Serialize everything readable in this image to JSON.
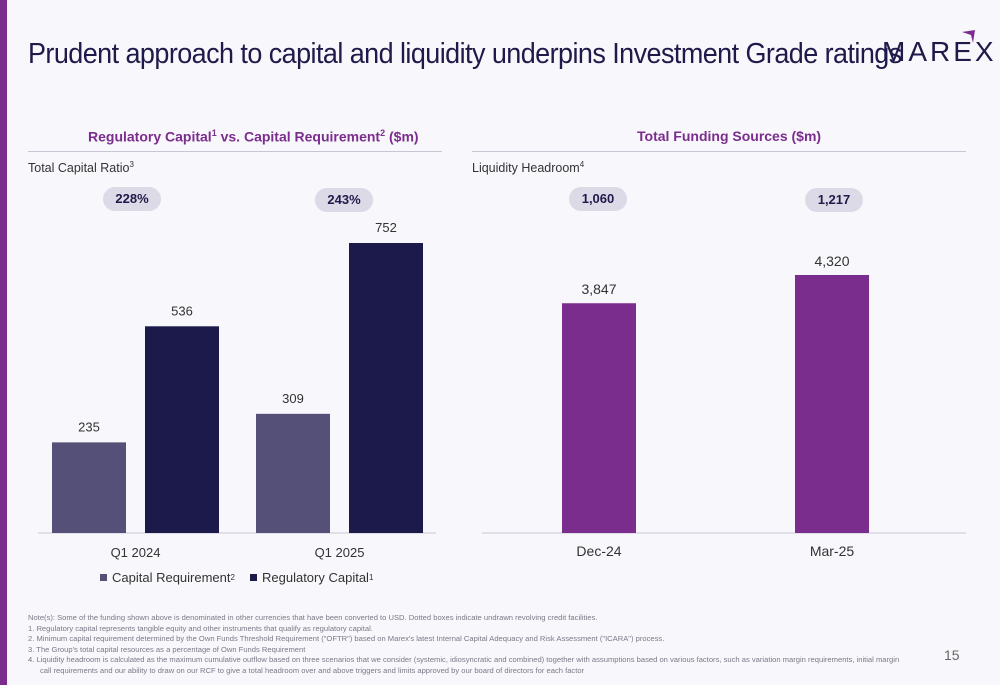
{
  "title": "Prudent approach to capital and liquidity underpins Investment Grade ratings",
  "logo": "MAREX",
  "page_number": "15",
  "colors": {
    "accent": "#7b2d8e",
    "capital_requirement": "#545077",
    "regulatory_capital": "#1c1a4a",
    "funding": "#7b2d8e",
    "pill": "#dcdae6"
  },
  "left_panel": {
    "title": "Regulatory Capital",
    "title_sup1": "1",
    "title_mid": " vs. Capital Requirement",
    "title_sup2": "2",
    "title_end": " ($m)",
    "sublabel": "Total Capital Ratio",
    "sublabel_sup": "3",
    "ratios": [
      "228%",
      "243%"
    ],
    "legend": [
      {
        "label": "Capital Requirement",
        "sup": "2"
      },
      {
        "label": "Regulatory Capital",
        "sup": "1"
      }
    ]
  },
  "right_panel": {
    "title": "Total Funding Sources ($m)",
    "sublabel": "Liquidity Headroom",
    "sublabel_sup": "4",
    "headroom": [
      "1,060",
      "1,217"
    ]
  },
  "chart_data": [
    {
      "type": "bar",
      "title": "Regulatory Capital vs. Capital Requirement ($m)",
      "categories": [
        "Q1 2024",
        "Q1 2025"
      ],
      "series": [
        {
          "name": "Capital Requirement",
          "values": [
            235,
            309
          ],
          "labels": [
            "235",
            "309"
          ]
        },
        {
          "name": "Regulatory Capital",
          "values": [
            536,
            752
          ],
          "labels": [
            "536",
            "752"
          ]
        }
      ],
      "ylim": [
        0,
        800
      ],
      "grid": false,
      "legend": "bottom-left"
    },
    {
      "type": "bar",
      "title": "Total Funding Sources ($m)",
      "categories": [
        "Dec-24",
        "Mar-25"
      ],
      "series": [
        {
          "values": [
            3847,
            4320
          ],
          "labels": [
            "3,847",
            "4,320"
          ]
        }
      ],
      "ylim": [
        0,
        5000
      ],
      "grid": false
    }
  ],
  "notes": [
    "Note(s): Some of the funding shown above is denominated in other currencies that have been converted to USD. Dotted boxes indicate undrawn revolving credit facilities.",
    "1.   Regulatory capital represents tangible equity and other instruments that qualify as regulatory capital.",
    "2.   Minimum capital requirement determined by the Own Funds Threshold Requirement (\"OFTR\") based on Marex's latest Internal Capital Adequacy and Risk Assessment (\"ICARA\") process.",
    "3.   The Group's total capital resources as a percentage of Own Funds Requirement",
    "4.   Liquidity headroom is calculated as the maximum cumulative outflow based on three scenarios that we consider (systemic, idiosyncratic and combined) together with assumptions based on various factors, such as variation margin requirements, initial margin",
    "call requirements and our ability to draw on our RCF to give a total headroom over and above triggers and limits approved by our board of directors for each factor"
  ]
}
